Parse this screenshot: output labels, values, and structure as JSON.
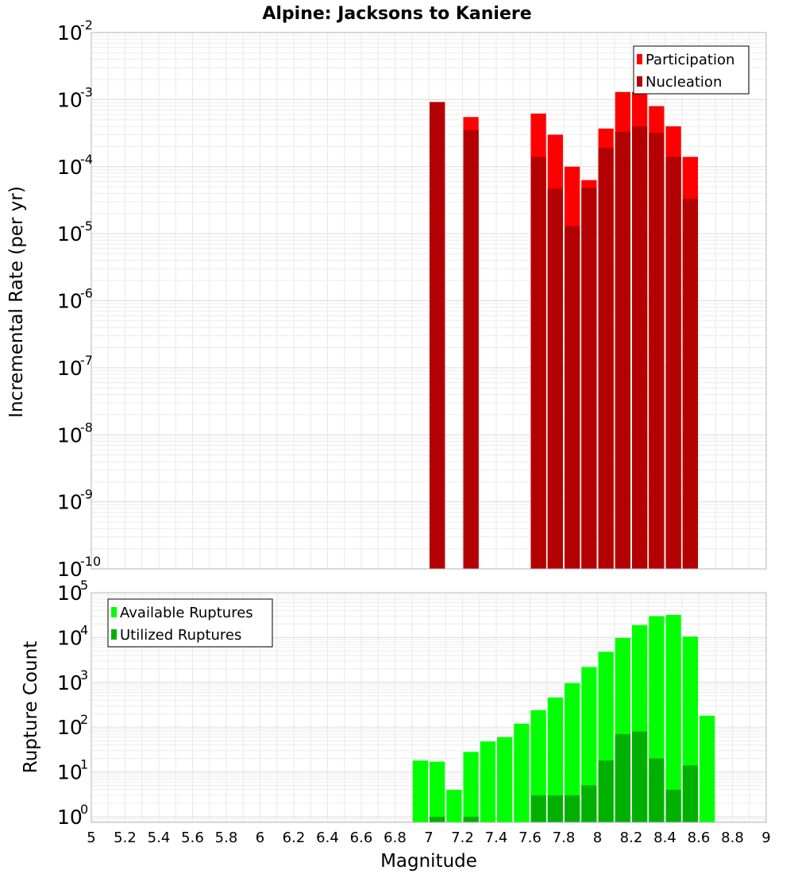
{
  "chart_data": [
    {
      "type": "bar",
      "title": "Alpine: Jacksons to Kaniere",
      "ylabel": "Incremental Rate (per yr)",
      "xlabel": "",
      "yscale": "log",
      "ylim": [
        1e-10,
        0.01
      ],
      "xlim": [
        5,
        9
      ],
      "ytick_base": "10",
      "ytick_exponents": [
        "-10",
        "-9",
        "-8",
        "-7",
        "-6",
        "-5",
        "-4",
        "-3",
        "-2"
      ],
      "legend": "top-right",
      "grid": true,
      "bin_width": 0.1,
      "series": [
        {
          "name": "Participation",
          "color": "#ff0000",
          "x": [
            7.05,
            7.25,
            7.65,
            7.75,
            7.85,
            7.95,
            8.05,
            8.15,
            8.25,
            8.35,
            8.45,
            8.55
          ],
          "values": [
            0.00092,
            0.00055,
            0.00062,
            0.0003,
            0.0001,
            6.3e-05,
            0.00037,
            0.0013,
            0.0013,
            0.0008,
            0.0004,
            0.00014
          ]
        },
        {
          "name": "Nucleation",
          "color": "#b30000",
          "x": [
            7.05,
            7.25,
            7.65,
            7.75,
            7.85,
            7.95,
            8.05,
            8.15,
            8.25,
            8.35,
            8.45,
            8.55
          ],
          "values": [
            0.00092,
            0.00035,
            0.00014,
            4.7e-05,
            1.3e-05,
            4.8e-05,
            0.00019,
            0.00033,
            0.0004,
            0.00032,
            0.00014,
            3.3e-05
          ]
        }
      ]
    },
    {
      "type": "bar",
      "title": "",
      "ylabel": "Rupture Count",
      "xlabel": "Magnitude",
      "yscale": "log",
      "ylim": [
        0.75,
        100000
      ],
      "xlim": [
        5,
        9
      ],
      "ytick_base": "10",
      "ytick_exponents": [
        "0",
        "1",
        "2",
        "3",
        "4",
        "5"
      ],
      "xtick_labels": [
        "5",
        "5.2",
        "5.4",
        "5.6",
        "5.8",
        "6",
        "6.2",
        "6.4",
        "6.6",
        "6.8",
        "7",
        "7.2",
        "7.4",
        "7.6",
        "7.8",
        "8",
        "8.2",
        "8.4",
        "8.6",
        "8.8",
        "9"
      ],
      "legend": "top-left",
      "grid": true,
      "bin_width": 0.1,
      "series": [
        {
          "name": "Available Ruptures",
          "color": "#00ff00",
          "x": [
            6.95,
            7.05,
            7.15,
            7.25,
            7.35,
            7.45,
            7.55,
            7.65,
            7.75,
            7.85,
            7.95,
            8.05,
            8.15,
            8.25,
            8.35,
            8.45,
            8.55,
            8.65
          ],
          "values": [
            18,
            17,
            4,
            28,
            48,
            60,
            120,
            240,
            460,
            960,
            2200,
            4800,
            9800,
            19000,
            30000,
            32000,
            10500,
            180
          ]
        },
        {
          "name": "Utilized Ruptures",
          "color": "#00b000",
          "x": [
            7.05,
            7.25,
            7.65,
            7.75,
            7.85,
            7.95,
            8.05,
            8.15,
            8.25,
            8.35,
            8.45,
            8.55
          ],
          "values": [
            1,
            1,
            3,
            3,
            3,
            5,
            18,
            70,
            80,
            20,
            4,
            14
          ]
        }
      ]
    }
  ]
}
